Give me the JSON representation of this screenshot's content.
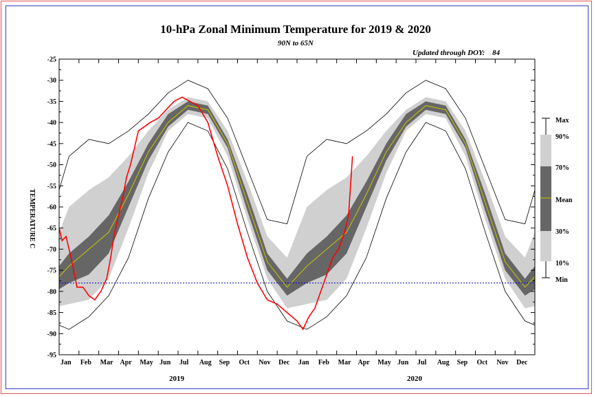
{
  "chart_data": {
    "type": "line",
    "title": "10-hPa Zonal Minimum Temperature for 2019 & 2020",
    "subtitle": "90N to 65N",
    "updated_label": "Updated through DOY:",
    "updated_doy": "84",
    "ylabel": "TEMPERATURE C",
    "ylim": [
      -95,
      -25
    ],
    "y_ticks": [
      "-25",
      "-30",
      "-35",
      "-40",
      "-45",
      "-50",
      "-55",
      "-60",
      "-65",
      "-70",
      "-75",
      "-80",
      "-85",
      "-90",
      "-95"
    ],
    "x_month_labels": [
      "Jan",
      "Feb",
      "Mar",
      "Apr",
      "May",
      "Jun",
      "Jul",
      "Aug",
      "Sep",
      "Oct",
      "Nov",
      "Dec",
      "Jan",
      "Feb",
      "Mar",
      "Apr",
      "May",
      "Jun",
      "Jul",
      "Aug",
      "Sep",
      "Oct",
      "Nov",
      "Dec"
    ],
    "years": [
      "2019",
      "2020"
    ],
    "reference_line": -78,
    "legend": {
      "labels": [
        "Max",
        "90%",
        "70%",
        "Mean",
        "30%",
        "10%",
        "Min"
      ]
    },
    "climatology_month": [
      "Jan",
      "Feb",
      "Mar",
      "Apr",
      "May",
      "Jun",
      "Jul",
      "Aug",
      "Sep",
      "Oct",
      "Nov",
      "Dec",
      "Jan"
    ],
    "climatology": {
      "mean": [
        -74,
        -70,
        -66,
        -57,
        -47,
        -40,
        -36,
        -37,
        -45,
        -59,
        -73,
        -79,
        -74
      ],
      "p10": [
        -83,
        -82,
        -77,
        -65,
        -52,
        -42,
        -38,
        -39,
        -48,
        -63,
        -77,
        -84,
        -83
      ],
      "p30": [
        -78,
        -76,
        -71,
        -60,
        -49,
        -41,
        -37,
        -38,
        -46,
        -61,
        -75,
        -81,
        -78
      ],
      "p70": [
        -71,
        -67,
        -62,
        -54,
        -45,
        -38,
        -35,
        -36,
        -44,
        -57,
        -71,
        -77,
        -71
      ],
      "p90": [
        -60,
        -56,
        -53,
        -48,
        -42,
        -37,
        -34,
        -35,
        -42,
        -54,
        -67,
        -72,
        -60
      ],
      "min": [
        -89,
        -86,
        -81,
        -72,
        -58,
        -47,
        -40,
        -42,
        -51,
        -66,
        -80,
        -87,
        -89
      ],
      "max": [
        -48,
        -44,
        -45,
        -42,
        -38,
        -33,
        -30,
        -32,
        -39,
        -51,
        -63,
        -64,
        -48
      ]
    },
    "series": [
      {
        "color": "#ff0000",
        "x_month": [
          0.0,
          0.15,
          0.35,
          0.6,
          0.9,
          1.2,
          1.5,
          1.8,
          2.1,
          2.4,
          2.6,
          2.8,
          3.0,
          3.2,
          3.4,
          3.6,
          3.8,
          4.0,
          4.3,
          4.6,
          5.0,
          5.4,
          5.8,
          6.2,
          6.6,
          7.0,
          7.5,
          8.0,
          8.5,
          9.0,
          9.5,
          10.0,
          10.5,
          11.0,
          11.5,
          12.0,
          12.3,
          12.6,
          12.9,
          13.2,
          13.5,
          13.8,
          14.1,
          14.4,
          14.6,
          14.8
        ],
        "values": [
          -65,
          -68,
          -67,
          -72,
          -79,
          -79,
          -81,
          -82,
          -80,
          -77,
          -72,
          -66,
          -62,
          -58,
          -53,
          -50,
          -46,
          -42,
          -41,
          -40,
          -39,
          -37,
          -35,
          -34,
          -35,
          -36,
          -40,
          -48,
          -55,
          -64,
          -72,
          -78,
          -82,
          -83,
          -85,
          -87,
          -89,
          -86,
          -84,
          -80,
          -76,
          -72,
          -70,
          -66,
          -62,
          -48
        ]
      }
    ]
  }
}
